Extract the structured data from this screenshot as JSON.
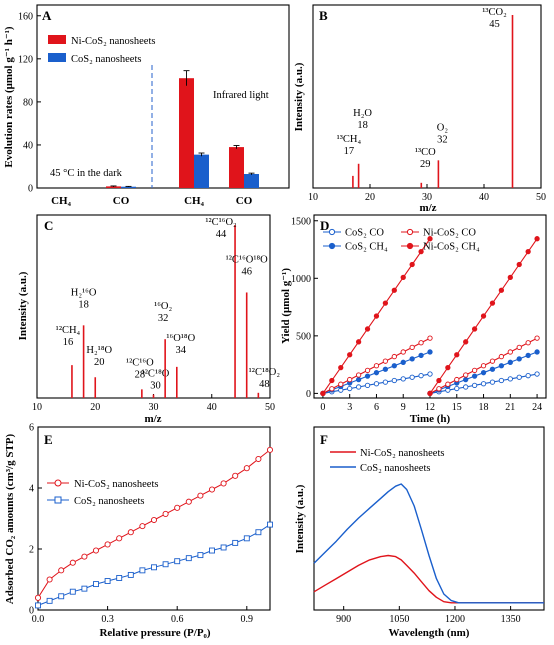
{
  "colors": {
    "red": "#e0141b",
    "blue": "#1a5fcc",
    "dash": "#3a6fd0",
    "ink": "#000000"
  },
  "chart_data": [
    {
      "panel": "A",
      "type": "bar",
      "ylabel": "Evolution rates (μmol g⁻¹ h⁻¹)",
      "ylim": [
        0,
        170
      ],
      "yticks": [
        "0",
        "40",
        "80",
        "120",
        "160"
      ],
      "ytick_values": [
        0,
        40,
        80,
        120,
        160
      ],
      "groups": [
        {
          "condition": "45 °C in the dark",
          "categories": [
            "CH₄",
            "CO"
          ]
        },
        {
          "condition": "Infrared light",
          "categories": [
            "CH₄",
            "CO"
          ]
        }
      ],
      "series": [
        {
          "name": "Ni-CoS₂ nanosheets",
          "color": "#e0141b",
          "values": [
            0,
            1.5,
            102,
            38
          ],
          "errors": [
            0,
            0.4,
            7,
            1.5
          ]
        },
        {
          "name": "CoS₂ nanosheets",
          "color": "#1a5fcc",
          "values": [
            0,
            1.2,
            31,
            13
          ],
          "errors": [
            0,
            0.3,
            1.5,
            0.8
          ]
        }
      ],
      "annotations": [
        "45 °C in the dark",
        "Infrared light"
      ]
    },
    {
      "panel": "B",
      "type": "bar",
      "subtype": "mass-spectrum",
      "xlabel": "m/z",
      "ylabel": "Intensity (a.u.)",
      "xlim": [
        10,
        50
      ],
      "xticks": [
        "10",
        "20",
        "30",
        "40",
        "50"
      ],
      "xtick_values": [
        10,
        20,
        30,
        40,
        50
      ],
      "peaks": [
        {
          "mz": 17,
          "intensity": 0.07,
          "label": "¹³CH₄",
          "mz_label": "17"
        },
        {
          "mz": 18,
          "intensity": 0.14,
          "label": "H₂O",
          "mz_label": "18"
        },
        {
          "mz": 29,
          "intensity": 0.03,
          "label": "¹³CO",
          "mz_label": "29"
        },
        {
          "mz": 32,
          "intensity": 0.16,
          "label": "O₂",
          "mz_label": "32"
        },
        {
          "mz": 45,
          "intensity": 1.0,
          "label": "¹³CO₂",
          "mz_label": "45"
        }
      ]
    },
    {
      "panel": "C",
      "type": "bar",
      "subtype": "mass-spectrum",
      "xlabel": "m/z",
      "ylabel": "Intensity (a.u.)",
      "xlim": [
        10,
        50
      ],
      "xticks": [
        "10",
        "20",
        "30",
        "40",
        "50"
      ],
      "xtick_values": [
        10,
        20,
        30,
        40,
        50
      ],
      "peaks": [
        {
          "mz": 16,
          "intensity": 0.19,
          "label": "¹²CH₄",
          "mz_label": "16"
        },
        {
          "mz": 18,
          "intensity": 0.42,
          "label": "H₂¹⁶O",
          "mz_label": "18"
        },
        {
          "mz": 20,
          "intensity": 0.12,
          "label": "H₂¹⁸O",
          "mz_label": "20"
        },
        {
          "mz": 28,
          "intensity": 0.05,
          "label": "¹²C¹⁶O",
          "mz_label": "28"
        },
        {
          "mz": 30,
          "intensity": 0.02,
          "label": "¹²C¹⁸O",
          "mz_label": "30"
        },
        {
          "mz": 32,
          "intensity": 0.34,
          "label": "¹⁶O₂",
          "mz_label": "32"
        },
        {
          "mz": 34,
          "intensity": 0.18,
          "label": "¹⁶O¹⁸O",
          "mz_label": "34"
        },
        {
          "mz": 44,
          "intensity": 1.0,
          "label": "¹²C¹⁶O₂",
          "mz_label": "44"
        },
        {
          "mz": 46,
          "intensity": 0.61,
          "label": "¹²C¹⁶O¹⁸O",
          "mz_label": "46"
        },
        {
          "mz": 48,
          "intensity": 0.03,
          "label": "¹²C¹⁸O₂",
          "mz_label": "48"
        }
      ]
    },
    {
      "panel": "D",
      "type": "line",
      "xlabel": "Time (h)",
      "ylabel": "Yield (μmol g⁻¹)",
      "xlim": [
        -1,
        25
      ],
      "ylim": [
        -40,
        1550
      ],
      "xticks": [
        "0",
        "3",
        "6",
        "9",
        "12",
        "15",
        "18",
        "21",
        "24"
      ],
      "xtick_values": [
        0,
        3,
        6,
        9,
        12,
        15,
        18,
        21,
        24
      ],
      "yticks": [
        "0",
        "500",
        "1000",
        "1500"
      ],
      "ytick_values": [
        0,
        500,
        1000,
        1500
      ],
      "x_cycle1": [
        0,
        1,
        2,
        3,
        4,
        5,
        6,
        7,
        8,
        9,
        10,
        11,
        12
      ],
      "x_cycle2": [
        12,
        13,
        14,
        15,
        16,
        17,
        18,
        19,
        20,
        21,
        22,
        23,
        24
      ],
      "series": [
        {
          "name": "CoS₂  CO",
          "color": "#1a5fcc",
          "marker": "open",
          "values_cycle1": [
            0,
            14,
            28,
            42,
            56,
            70,
            84,
            98,
            112,
            126,
            140,
            154,
            168
          ],
          "values_cycle2": [
            0,
            14,
            28,
            42,
            56,
            70,
            84,
            98,
            112,
            126,
            140,
            154,
            168
          ]
        },
        {
          "name": "CoS₂  CH₄",
          "color": "#1a5fcc",
          "marker": "filled",
          "values_cycle1": [
            0,
            30,
            60,
            90,
            120,
            150,
            180,
            210,
            240,
            270,
            300,
            330,
            360
          ],
          "values_cycle2": [
            0,
            30,
            60,
            90,
            120,
            150,
            180,
            210,
            240,
            270,
            300,
            330,
            360
          ]
        },
        {
          "name": "Ni-CoS₂  CO",
          "color": "#e0141b",
          "marker": "open",
          "values_cycle1": [
            0,
            40,
            80,
            120,
            160,
            200,
            240,
            280,
            320,
            360,
            400,
            440,
            480
          ],
          "values_cycle2": [
            0,
            40,
            80,
            120,
            160,
            200,
            240,
            280,
            320,
            360,
            400,
            440,
            480
          ]
        },
        {
          "name": "Ni-CoS₂  CH₄",
          "color": "#e0141b",
          "marker": "filled",
          "values_cycle1": [
            0,
            112,
            224,
            336,
            448,
            560,
            672,
            784,
            896,
            1008,
            1120,
            1232,
            1344
          ],
          "values_cycle2": [
            0,
            112,
            224,
            336,
            448,
            560,
            672,
            784,
            896,
            1008,
            1120,
            1232,
            1344
          ]
        }
      ]
    },
    {
      "panel": "E",
      "type": "line",
      "xlabel": "Relative pressure (P/P₀)",
      "ylabel": "Adsorbed CO₂ amounts (cm³/g STP)",
      "xlim": [
        0,
        1.0
      ],
      "ylim": [
        0,
        6
      ],
      "xticks": [
        "0.0",
        "0.3",
        "0.6",
        "0.9"
      ],
      "xtick_values": [
        0.0,
        0.3,
        0.6,
        0.9
      ],
      "yticks": [
        "0",
        "2",
        "4",
        "6"
      ],
      "ytick_values": [
        0,
        2,
        4,
        6
      ],
      "x": [
        0.0,
        0.05,
        0.1,
        0.15,
        0.2,
        0.25,
        0.3,
        0.35,
        0.4,
        0.45,
        0.5,
        0.55,
        0.6,
        0.65,
        0.7,
        0.75,
        0.8,
        0.85,
        0.9,
        0.95,
        1.0
      ],
      "series": [
        {
          "name": "Ni-CoS₂ nanosheets",
          "color": "#e0141b",
          "marker": "circle",
          "values": [
            0.4,
            1.0,
            1.3,
            1.55,
            1.75,
            1.95,
            2.15,
            2.35,
            2.55,
            2.75,
            2.95,
            3.15,
            3.35,
            3.55,
            3.75,
            3.95,
            4.15,
            4.4,
            4.65,
            4.95,
            5.25
          ]
        },
        {
          "name": "CoS₂ nanosheets",
          "color": "#1a5fcc",
          "marker": "square",
          "values": [
            0.15,
            0.3,
            0.45,
            0.6,
            0.7,
            0.85,
            0.95,
            1.05,
            1.15,
            1.3,
            1.4,
            1.5,
            1.6,
            1.7,
            1.8,
            1.95,
            2.05,
            2.2,
            2.35,
            2.55,
            2.8
          ]
        }
      ]
    },
    {
      "panel": "F",
      "type": "line",
      "xlabel": "Wavelength (nm)",
      "ylabel": "Intensity (a.u.)",
      "xlim": [
        820,
        1440
      ],
      "xticks": [
        "900",
        "1050",
        "1200",
        "1350"
      ],
      "xtick_values": [
        900,
        1050,
        1200,
        1350
      ],
      "x": [
        820,
        850,
        880,
        910,
        940,
        970,
        1000,
        1020,
        1040,
        1055,
        1070,
        1090,
        1110,
        1130,
        1150,
        1170,
        1190,
        1210,
        1230,
        1260,
        1300,
        1350,
        1400,
        1440
      ],
      "series": [
        {
          "name": "Ni-CoS₂ nanosheets",
          "color": "#e0141b",
          "values": [
            0.12,
            0.18,
            0.24,
            0.3,
            0.36,
            0.41,
            0.44,
            0.45,
            0.44,
            0.41,
            0.36,
            0.29,
            0.21,
            0.13,
            0.07,
            0.03,
            0.02,
            0.02,
            0.02,
            0.02,
            0.02,
            0.02,
            0.02,
            0.02
          ]
        },
        {
          "name": "CoS₂ nanosheets",
          "color": "#1a5fcc",
          "values": [
            0.38,
            0.48,
            0.58,
            0.69,
            0.79,
            0.88,
            0.97,
            1.03,
            1.08,
            1.1,
            1.05,
            0.9,
            0.68,
            0.45,
            0.24,
            0.1,
            0.04,
            0.02,
            0.02,
            0.02,
            0.02,
            0.02,
            0.02,
            0.02
          ]
        }
      ]
    }
  ]
}
